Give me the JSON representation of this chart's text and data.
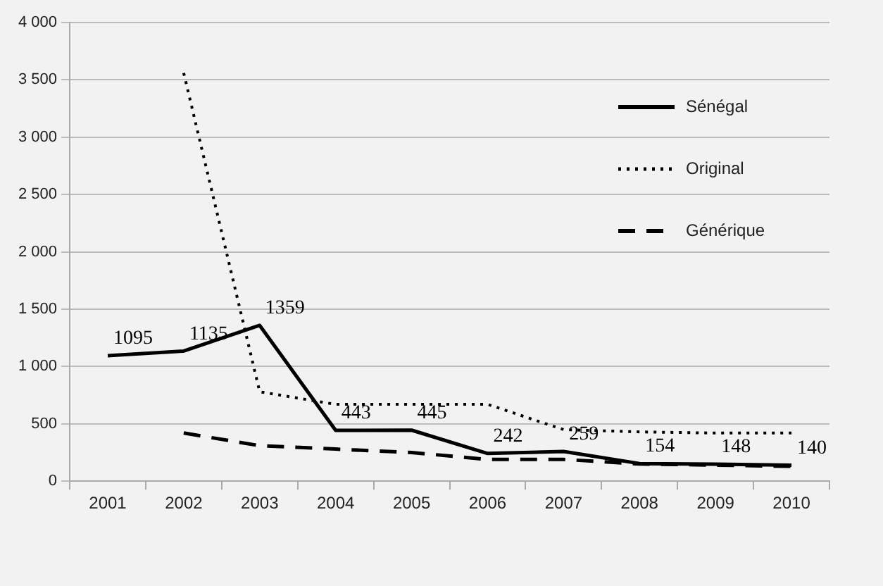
{
  "chart_data": {
    "type": "line",
    "categories": [
      "2001",
      "2002",
      "2003",
      "2004",
      "2005",
      "2006",
      "2007",
      "2008",
      "2009",
      "2010"
    ],
    "series": [
      {
        "name": "Sénégal",
        "color": "#000000",
        "line_style": "solid",
        "values": [
          1095,
          1135,
          1359,
          443,
          445,
          242,
          259,
          154,
          148,
          140
        ],
        "value_labels": [
          "1095",
          "1135",
          "1359",
          "443",
          "445",
          "242",
          "259",
          "154",
          "148",
          "140"
        ]
      },
      {
        "name": "Original",
        "color": "#000000",
        "line_style": "dotted",
        "values": [
          null,
          3560,
          780,
          670,
          670,
          670,
          450,
          430,
          420,
          420
        ]
      },
      {
        "name": "Générique",
        "color": "#000000",
        "line_style": "dashed",
        "values": [
          null,
          420,
          310,
          280,
          250,
          190,
          190,
          150,
          140,
          130
        ]
      }
    ],
    "ylim": [
      0,
      4000
    ],
    "yticks": [
      0,
      {
        "value": 500,
        "label": "500"
      },
      {
        "value": 1000,
        "label": "1 000"
      },
      {
        "value": 1500,
        "label": "1 500"
      },
      {
        "value": 2000,
        "label": "2 000"
      },
      {
        "value": 2500,
        "label": "2 500"
      },
      {
        "value": 3000,
        "label": "3 000"
      },
      {
        "value": 3500,
        "label": "3 500"
      },
      {
        "value": 4000,
        "label": "4 000"
      }
    ],
    "grid": "y",
    "legend": "top right",
    "marker": "none"
  }
}
